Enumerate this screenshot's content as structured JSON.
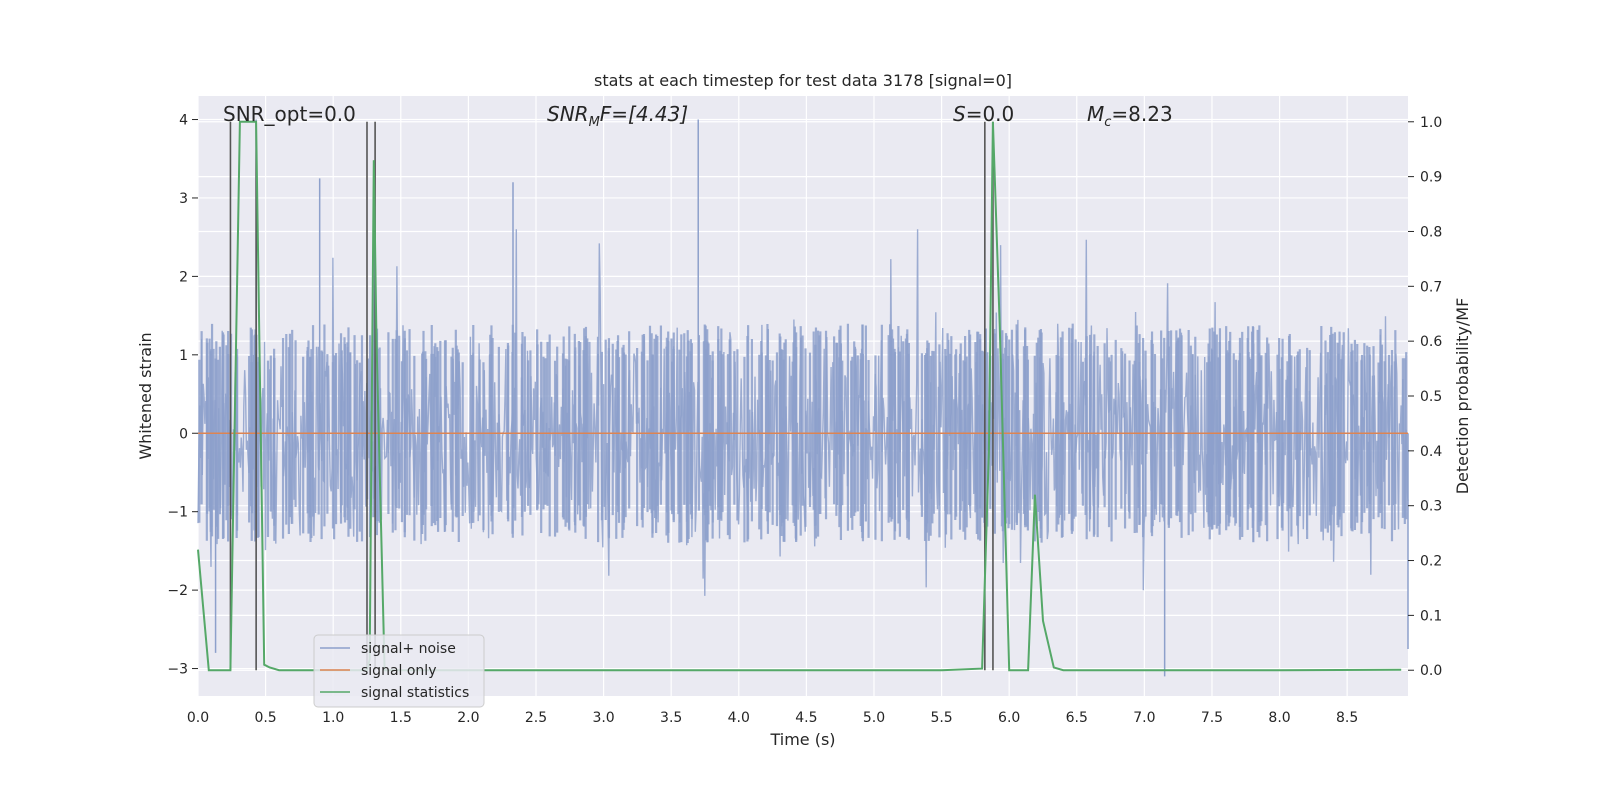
{
  "chart_data": {
    "type": "line",
    "title": "stats at each timestep for test data 3178 [signal=0]",
    "xlabel": "Time (s)",
    "ylabel": "Whitened strain",
    "y2label": "Detection probability/MF",
    "xlim": [
      0.0,
      8.95
    ],
    "ylim": [
      -3.35,
      4.3
    ],
    "y2lim": [
      -0.047,
      1.047
    ],
    "x_ticks": [
      "0.0",
      "0.5",
      "1.0",
      "1.5",
      "2.0",
      "2.5",
      "3.0",
      "3.5",
      "4.0",
      "4.5",
      "5.0",
      "5.5",
      "6.0",
      "6.5",
      "7.0",
      "7.5",
      "8.0",
      "8.5"
    ],
    "y_ticks": [
      "4",
      "3",
      "2",
      "1",
      "0",
      "−1",
      "−2",
      "−3"
    ],
    "y2_ticks": [
      "1.0",
      "0.9",
      "0.8",
      "0.7",
      "0.6",
      "0.5",
      "0.4",
      "0.3",
      "0.2",
      "0.1",
      "0.0"
    ],
    "grid": true,
    "legend_position": "lower-left",
    "annotations": {
      "snr_opt": "SNR_opt=0.0",
      "snr_mf_main": "SNR",
      "snr_mf_sub": "M",
      "snr_mf_rest": "F=[4.43]",
      "s_main": "S",
      "s_rest": "=0.0",
      "mc_main": "M",
      "mc_sub": "c",
      "mc_rest": "=8.23"
    },
    "series": [
      {
        "name": "signal+ noise",
        "color": "#8da0cb",
        "description_values": "whitened noise, amplitude mostly within [-1.8, 2.2], spikes to 4.0 near 0.43 s and 3.7 s",
        "x_range": [
          0.0,
          8.95
        ],
        "spikes": [
          [
            0.43,
            4.0
          ],
          [
            0.9,
            3.25
          ],
          [
            2.33,
            3.2
          ],
          [
            3.7,
            4.0
          ],
          [
            1.3,
            3.35
          ],
          [
            7.15,
            -3.1
          ],
          [
            0.13,
            -2.8
          ],
          [
            8.95,
            -2.75
          ]
        ]
      },
      {
        "name": "signal only",
        "color": "#dd8452",
        "x": [
          0.0,
          8.95
        ],
        "y": [
          0.0,
          0.0
        ]
      },
      {
        "name": "signal statistics",
        "color": "#55a868",
        "axis": "right",
        "x": [
          0.0,
          0.08,
          0.24,
          0.31,
          0.36,
          0.43,
          0.49,
          0.53,
          0.6,
          0.8,
          1.0,
          1.15,
          1.25,
          1.27,
          1.3,
          1.32,
          1.38,
          1.45,
          2.0,
          3.0,
          4.0,
          5.0,
          5.5,
          5.8,
          5.85,
          5.88,
          5.93,
          6.0,
          6.1,
          6.14,
          6.19,
          6.25,
          6.33,
          6.4,
          7.0,
          8.0,
          8.9
        ],
        "y": [
          0.22,
          0.0,
          0.0,
          1.0,
          1.0,
          1.0,
          0.01,
          0.005,
          0.0,
          0.0,
          0.0,
          0.0,
          0.0,
          0.02,
          0.93,
          0.6,
          0.0,
          0.0,
          0.0,
          0.0,
          0.0,
          0.0,
          0.0,
          0.003,
          0.4,
          1.0,
          0.63,
          0.0,
          0.0,
          0.0,
          0.32,
          0.09,
          0.005,
          0.0,
          0.0,
          0.0,
          0.001
        ]
      }
    ],
    "vlines": [
      0.24,
      0.43,
      1.25,
      1.31,
      5.82,
      5.88
    ]
  }
}
